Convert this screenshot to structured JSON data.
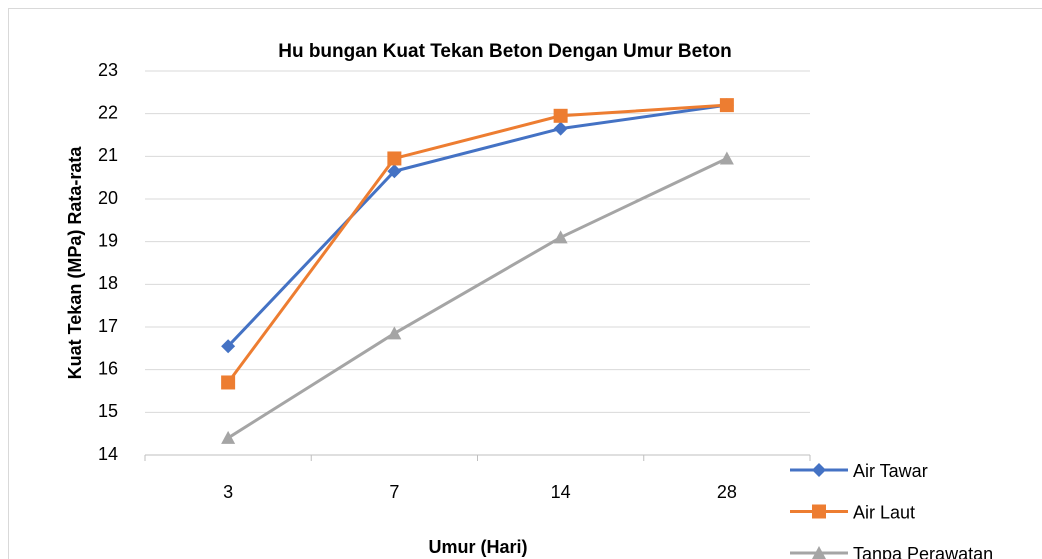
{
  "chart_data": {
    "type": "line",
    "title": "Hu bungan Kuat Tekan Beton Dengan Umur Beton",
    "x_label": "Umur (Hari)",
    "y_label": "Kuat Tekan (MPa) Rata-rata",
    "categories": [
      "3",
      "7",
      "14",
      "28"
    ],
    "series": [
      {
        "name": "Air Tawar",
        "color": "#4472c4",
        "marker": "diamond",
        "values": [
          16.55,
          20.65,
          21.65,
          22.2
        ]
      },
      {
        "name": "Air Laut",
        "color": "#ed7d31",
        "marker": "square",
        "values": [
          15.7,
          20.95,
          21.95,
          22.2
        ]
      },
      {
        "name": "Tanpa Perawatan",
        "color": "#a5a5a5",
        "marker": "triangle",
        "values": [
          14.4,
          16.85,
          19.1,
          20.95
        ]
      }
    ],
    "ylim": [
      14,
      23
    ],
    "yticks": [
      14,
      15,
      16,
      17,
      18,
      19,
      20,
      21,
      22,
      23
    ],
    "grid": true,
    "legend": "bottom-right"
  }
}
